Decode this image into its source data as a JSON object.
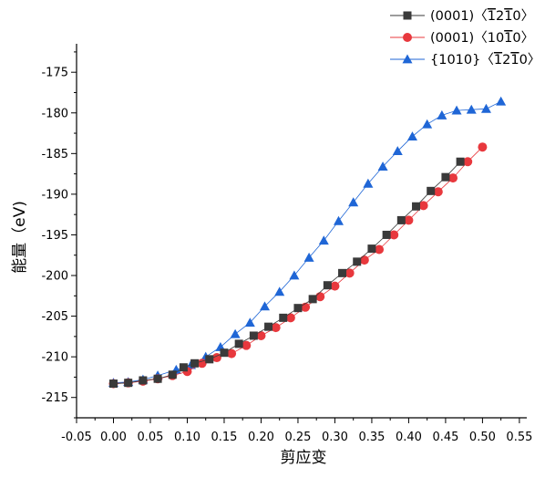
{
  "chart_data": {
    "type": "line",
    "title": "",
    "xlabel": "剪应变",
    "ylabel": "能量（eV)",
    "xlim": [
      -0.05,
      0.56
    ],
    "ylim": [
      -217.5,
      -171.5
    ],
    "xticks": [
      "-0.05",
      "0.00",
      "0.05",
      "0.10",
      "0.15",
      "0.20",
      "0.25",
      "0.30",
      "0.35",
      "0.40",
      "0.45",
      "0.50",
      "0.55"
    ],
    "yticks": [
      "-175",
      "-180",
      "-185",
      "-190",
      "-195",
      "-200",
      "-205",
      "-210",
      "-215"
    ],
    "xtick_values": [
      -0.05,
      0.0,
      0.05,
      0.1,
      0.15,
      0.2,
      0.25,
      0.3,
      0.35,
      0.4,
      0.45,
      0.5,
      0.55
    ],
    "ytick_values": [
      -175,
      -180,
      -185,
      -190,
      -195,
      -200,
      -205,
      -210,
      -215
    ],
    "legend_position": "top-right",
    "grid": false,
    "series": [
      {
        "name": "(0001)〈̅2̅0〉",
        "legend_parts": [
          "(0001)〈",
          "1",
          "2",
          "1",
          "0",
          "〉"
        ],
        "legend_bars": [
          true,
          false,
          true,
          false
        ],
        "marker": "square",
        "color": "#3a3a3a",
        "x": [
          0.0,
          0.02,
          0.04,
          0.06,
          0.08,
          0.095,
          0.11,
          0.13,
          0.15,
          0.17,
          0.19,
          0.21,
          0.23,
          0.25,
          0.27,
          0.29,
          0.31,
          0.33,
          0.35,
          0.37,
          0.39,
          0.41,
          0.43,
          0.45,
          0.47
        ],
        "y": [
          -213.3,
          -213.2,
          -212.9,
          -212.7,
          -212.2,
          -211.3,
          -210.8,
          -210.3,
          -209.5,
          -208.4,
          -207.4,
          -206.3,
          -205.2,
          -204.0,
          -202.9,
          -201.2,
          -199.7,
          -198.3,
          -196.7,
          -195.0,
          -193.2,
          -191.5,
          -189.6,
          -187.9,
          -186.0
        ]
      },
      {
        "name": "(0001)〈10̅0〉",
        "legend_parts": [
          "(0001)〈",
          "10",
          "1",
          "0",
          "〉"
        ],
        "legend_bars": [
          false,
          true,
          false
        ],
        "marker": "circle",
        "color": "#e8383d",
        "x": [
          0.0,
          0.02,
          0.04,
          0.06,
          0.08,
          0.1,
          0.12,
          0.14,
          0.16,
          0.18,
          0.2,
          0.22,
          0.24,
          0.26,
          0.28,
          0.3,
          0.32,
          0.34,
          0.36,
          0.38,
          0.4,
          0.42,
          0.44,
          0.46,
          0.48,
          0.5
        ],
        "y": [
          -213.3,
          -213.2,
          -213.0,
          -212.7,
          -212.3,
          -211.8,
          -210.8,
          -210.1,
          -209.6,
          -208.6,
          -207.4,
          -206.4,
          -205.2,
          -203.9,
          -202.6,
          -201.3,
          -199.7,
          -198.1,
          -196.8,
          -195.0,
          -193.2,
          -191.4,
          -189.7,
          -188.0,
          -186.0,
          -184.2
        ]
      },
      {
        "name": "{1010}〈̅2̅0〉",
        "legend_parts": [
          "{1010}〈",
          "1",
          "2",
          "1",
          "0",
          "〉"
        ],
        "legend_bars": [
          true,
          false,
          true,
          false
        ],
        "marker": "triangle",
        "color": "#1f66d6",
        "x": [
          0.0,
          0.02,
          0.04,
          0.06,
          0.085,
          0.105,
          0.125,
          0.145,
          0.165,
          0.185,
          0.205,
          0.225,
          0.245,
          0.265,
          0.285,
          0.305,
          0.325,
          0.345,
          0.365,
          0.385,
          0.405,
          0.425,
          0.445,
          0.465,
          0.485,
          0.505,
          0.525
        ],
        "y": [
          -213.2,
          -213.1,
          -212.8,
          -212.3,
          -211.6,
          -211.0,
          -210.0,
          -208.8,
          -207.2,
          -205.8,
          -203.8,
          -202.0,
          -200.0,
          -197.8,
          -195.7,
          -193.3,
          -191.0,
          -188.7,
          -186.6,
          -184.7,
          -182.9,
          -181.4,
          -180.3,
          -179.7,
          -179.6,
          -179.5,
          -178.6
        ]
      }
    ]
  }
}
